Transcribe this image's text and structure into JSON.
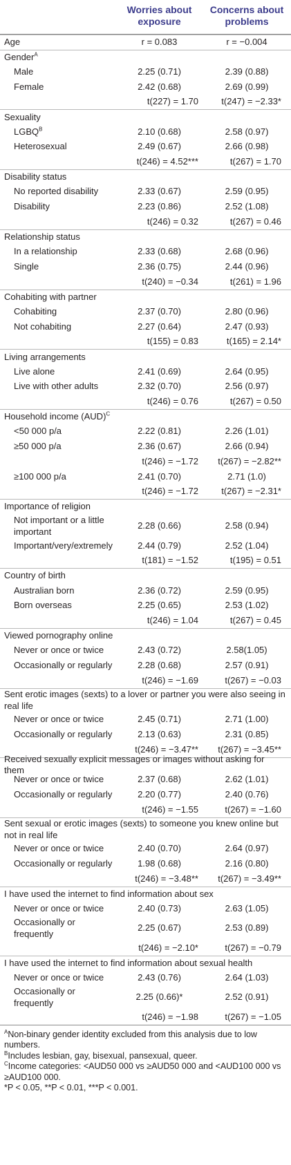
{
  "header": {
    "col1": "Worries about exposure",
    "col2": "Concerns about problems"
  },
  "rows": [
    {
      "type": "section",
      "label": "Age",
      "a": "r = 0.083",
      "b": "r = −0.004"
    },
    {
      "type": "section",
      "label": "Gender",
      "sup": "A"
    },
    {
      "type": "sub",
      "label": "Male",
      "a": "2.25 (0.71)",
      "b": "2.39 (0.88)"
    },
    {
      "type": "sub",
      "label": "Female",
      "a": "2.42 (0.68)",
      "b": "2.69 (0.99)"
    },
    {
      "type": "stat",
      "a": "t(227) = 1.70",
      "b": "t(247) = −2.33*"
    },
    {
      "type": "section",
      "label": "Sexuality"
    },
    {
      "type": "sub",
      "label": "LGBQ",
      "sup": "B",
      "a": "2.10 (0.68)",
      "b": "2.58 (0.97)"
    },
    {
      "type": "sub",
      "label": "Heterosexual",
      "a": "2.49 (0.67)",
      "b": "2.66 (0.98)"
    },
    {
      "type": "stat",
      "a": "t(246) = 4.52***",
      "b": "t(267) = 1.70"
    },
    {
      "type": "section",
      "label": "Disability status"
    },
    {
      "type": "sub",
      "label": "No reported disability",
      "a": "2.33 (0.67)",
      "b": "2.59 (0.95)"
    },
    {
      "type": "sub",
      "label": "Disability",
      "a": "2.23 (0.86)",
      "b": "2.52 (1.08)"
    },
    {
      "type": "stat",
      "a": "t(246) = 0.32",
      "b": "t(267) = 0.46"
    },
    {
      "type": "section",
      "label": "Relationship status"
    },
    {
      "type": "sub",
      "label": "In a relationship",
      "a": "2.33 (0.68)",
      "b": "2.68 (0.96)"
    },
    {
      "type": "sub",
      "label": "Single",
      "a": "2.36 (0.75)",
      "b": "2.44 (0.96)"
    },
    {
      "type": "stat",
      "a": "t(240) = −0.34",
      "b": "t(261) = 1.96"
    },
    {
      "type": "section",
      "label": "Cohabiting with partner"
    },
    {
      "type": "sub",
      "label": "Cohabiting",
      "a": "2.37 (0.70)",
      "b": "2.80 (0.96)"
    },
    {
      "type": "sub",
      "label": "Not cohabiting",
      "a": "2.27 (0.64)",
      "b": "2.47 (0.93)"
    },
    {
      "type": "stat",
      "a": "t(155) = 0.83",
      "b": "t(165) = 2.14*"
    },
    {
      "type": "section",
      "label": "Living arrangements"
    },
    {
      "type": "sub",
      "label": "Live alone",
      "a": "2.41 (0.69)",
      "b": "2.64 (0.95)"
    },
    {
      "type": "sub",
      "label": "Live with other adults",
      "a": "2.32 (0.70)",
      "b": "2.56 (0.97)"
    },
    {
      "type": "stat",
      "a": "t(246) = 0.76",
      "b": "t(267) = 0.50"
    },
    {
      "type": "section",
      "label": "Household income (AUD)",
      "sup": "C"
    },
    {
      "type": "sub",
      "label": "<50 000 p/a",
      "a": "2.22 (0.81)",
      "b": "2.26 (1.01)"
    },
    {
      "type": "sub",
      "label": "≥50 000 p/a",
      "a": "2.36 (0.67)",
      "b": "2.66 (0.94)"
    },
    {
      "type": "stat",
      "a": "t(246) = −1.72",
      "b": "t(267) = −2.82**"
    },
    {
      "type": "sub",
      "label": "≥100 000 p/a",
      "a": "2.41 (0.70)",
      "b": "2.71 (1.0)"
    },
    {
      "type": "stat",
      "a": "t(246) = −1.72",
      "b": "t(267) = −2.31*"
    },
    {
      "type": "section",
      "label": "Importance of religion"
    },
    {
      "type": "sub",
      "label": "Not important or a little important",
      "a": "2.28 (0.66)",
      "b": "2.58 (0.94)",
      "tall": true
    },
    {
      "type": "sub",
      "label": "Important/very/extremely",
      "a": "2.44 (0.79)",
      "b": "2.52 (1.04)"
    },
    {
      "type": "stat",
      "a": "t(181) = −1.52",
      "b": "t(195) = 0.51"
    },
    {
      "type": "section",
      "label": "Country of birth"
    },
    {
      "type": "sub",
      "label": "Australian born",
      "a": "2.36 (0.72)",
      "b": "2.59 (0.95)"
    },
    {
      "type": "sub",
      "label": "Born overseas",
      "a": "2.25 (0.65)",
      "b": "2.53 (1.02)"
    },
    {
      "type": "stat",
      "a": "t(246) = 1.04",
      "b": "t(267) = 0.45"
    },
    {
      "type": "section",
      "label": "Viewed pornography online"
    },
    {
      "type": "sub",
      "label": "Never or once or twice",
      "a": "2.43 (0.72)",
      "b": "2.58(1.05)"
    },
    {
      "type": "sub",
      "label": "Occasionally or regularly",
      "a": "2.28 (0.68)",
      "b": "2.57 (0.91)"
    },
    {
      "type": "stat",
      "a": "t(246) = −1.69",
      "b": "t(267) = −0.03"
    },
    {
      "type": "section",
      "label": "Sent erotic images (sexts) to a lover or partner you were also seeing in real life",
      "tall": true
    },
    {
      "type": "sub",
      "label": "Never or once or twice",
      "a": "2.45 (0.71)",
      "b": "2.71 (1.00)"
    },
    {
      "type": "sub",
      "label": "Occasionally or regularly",
      "a": "2.13 (0.63)",
      "b": "2.31 (0.85)"
    },
    {
      "type": "stat",
      "a": "t(246) = −3.47**",
      "b": "t(267) = −3.45**"
    },
    {
      "type": "section",
      "label": "Received sexually explicit messages or images without asking for them"
    },
    {
      "type": "sub",
      "label": "Never or once or twice",
      "a": "2.37 (0.68)",
      "b": "2.62 (1.01)"
    },
    {
      "type": "sub",
      "label": "Occasionally or regularly",
      "a": "2.20 (0.77)",
      "b": "2.40 (0.76)"
    },
    {
      "type": "stat",
      "a": "t(246) = −1.55",
      "b": "t(267) = −1.60"
    },
    {
      "type": "section",
      "label": "Sent sexual or erotic images (sexts) to someone you knew online but not in real life",
      "tall": true
    },
    {
      "type": "sub",
      "label": "Never or once or twice",
      "a": "2.40 (0.70)",
      "b": "2.64 (0.97)"
    },
    {
      "type": "sub",
      "label": "Occasionally or regularly",
      "a": "1.98 (0.68)",
      "b": "2.16 (0.80)"
    },
    {
      "type": "stat",
      "a": "t(246) = −3.48**",
      "b": "t(267) = −3.49**"
    },
    {
      "type": "section",
      "label": "I have used the internet to find information about sex"
    },
    {
      "type": "sub",
      "label": "Never or once or twice",
      "a": "2.40 (0.73)",
      "b": "2.63 (1.05)"
    },
    {
      "type": "sub",
      "label": "Occasionally or frequently",
      "a": "2.25 (0.67)",
      "b": "2.53 (0.89)",
      "tall": true
    },
    {
      "type": "stat",
      "a": "t(246) = −2.10*",
      "b": "t(267) = −0.79"
    },
    {
      "type": "section",
      "label": "I have used the internet to find information about sexual health"
    },
    {
      "type": "sub",
      "label": "Never or once or twice",
      "a": "2.43 (0.76)",
      "b": "2.64 (1.03)"
    },
    {
      "type": "sub",
      "label": "Occasionally or frequently",
      "a": "2.25 (0.66)*",
      "b": "2.52 (0.91)",
      "tall": true
    },
    {
      "type": "stat",
      "a": "t(246) = −1.98",
      "b": "t(267) = −1.05"
    }
  ],
  "footnotes": [
    {
      "sup": "A",
      "text": "Non-binary gender identity excluded from this analysis due to low numbers."
    },
    {
      "sup": "B",
      "text": "Includes lesbian, gay, bisexual, pansexual, queer."
    },
    {
      "sup": "C",
      "text": "Income categories: <AUD50 000 vs ≥AUD50 000 and <AUD100 000 vs ≥AUD100 000."
    },
    {
      "sup": "",
      "text": "*P < 0.05, **P < 0.01, ***P < 0.001."
    }
  ]
}
